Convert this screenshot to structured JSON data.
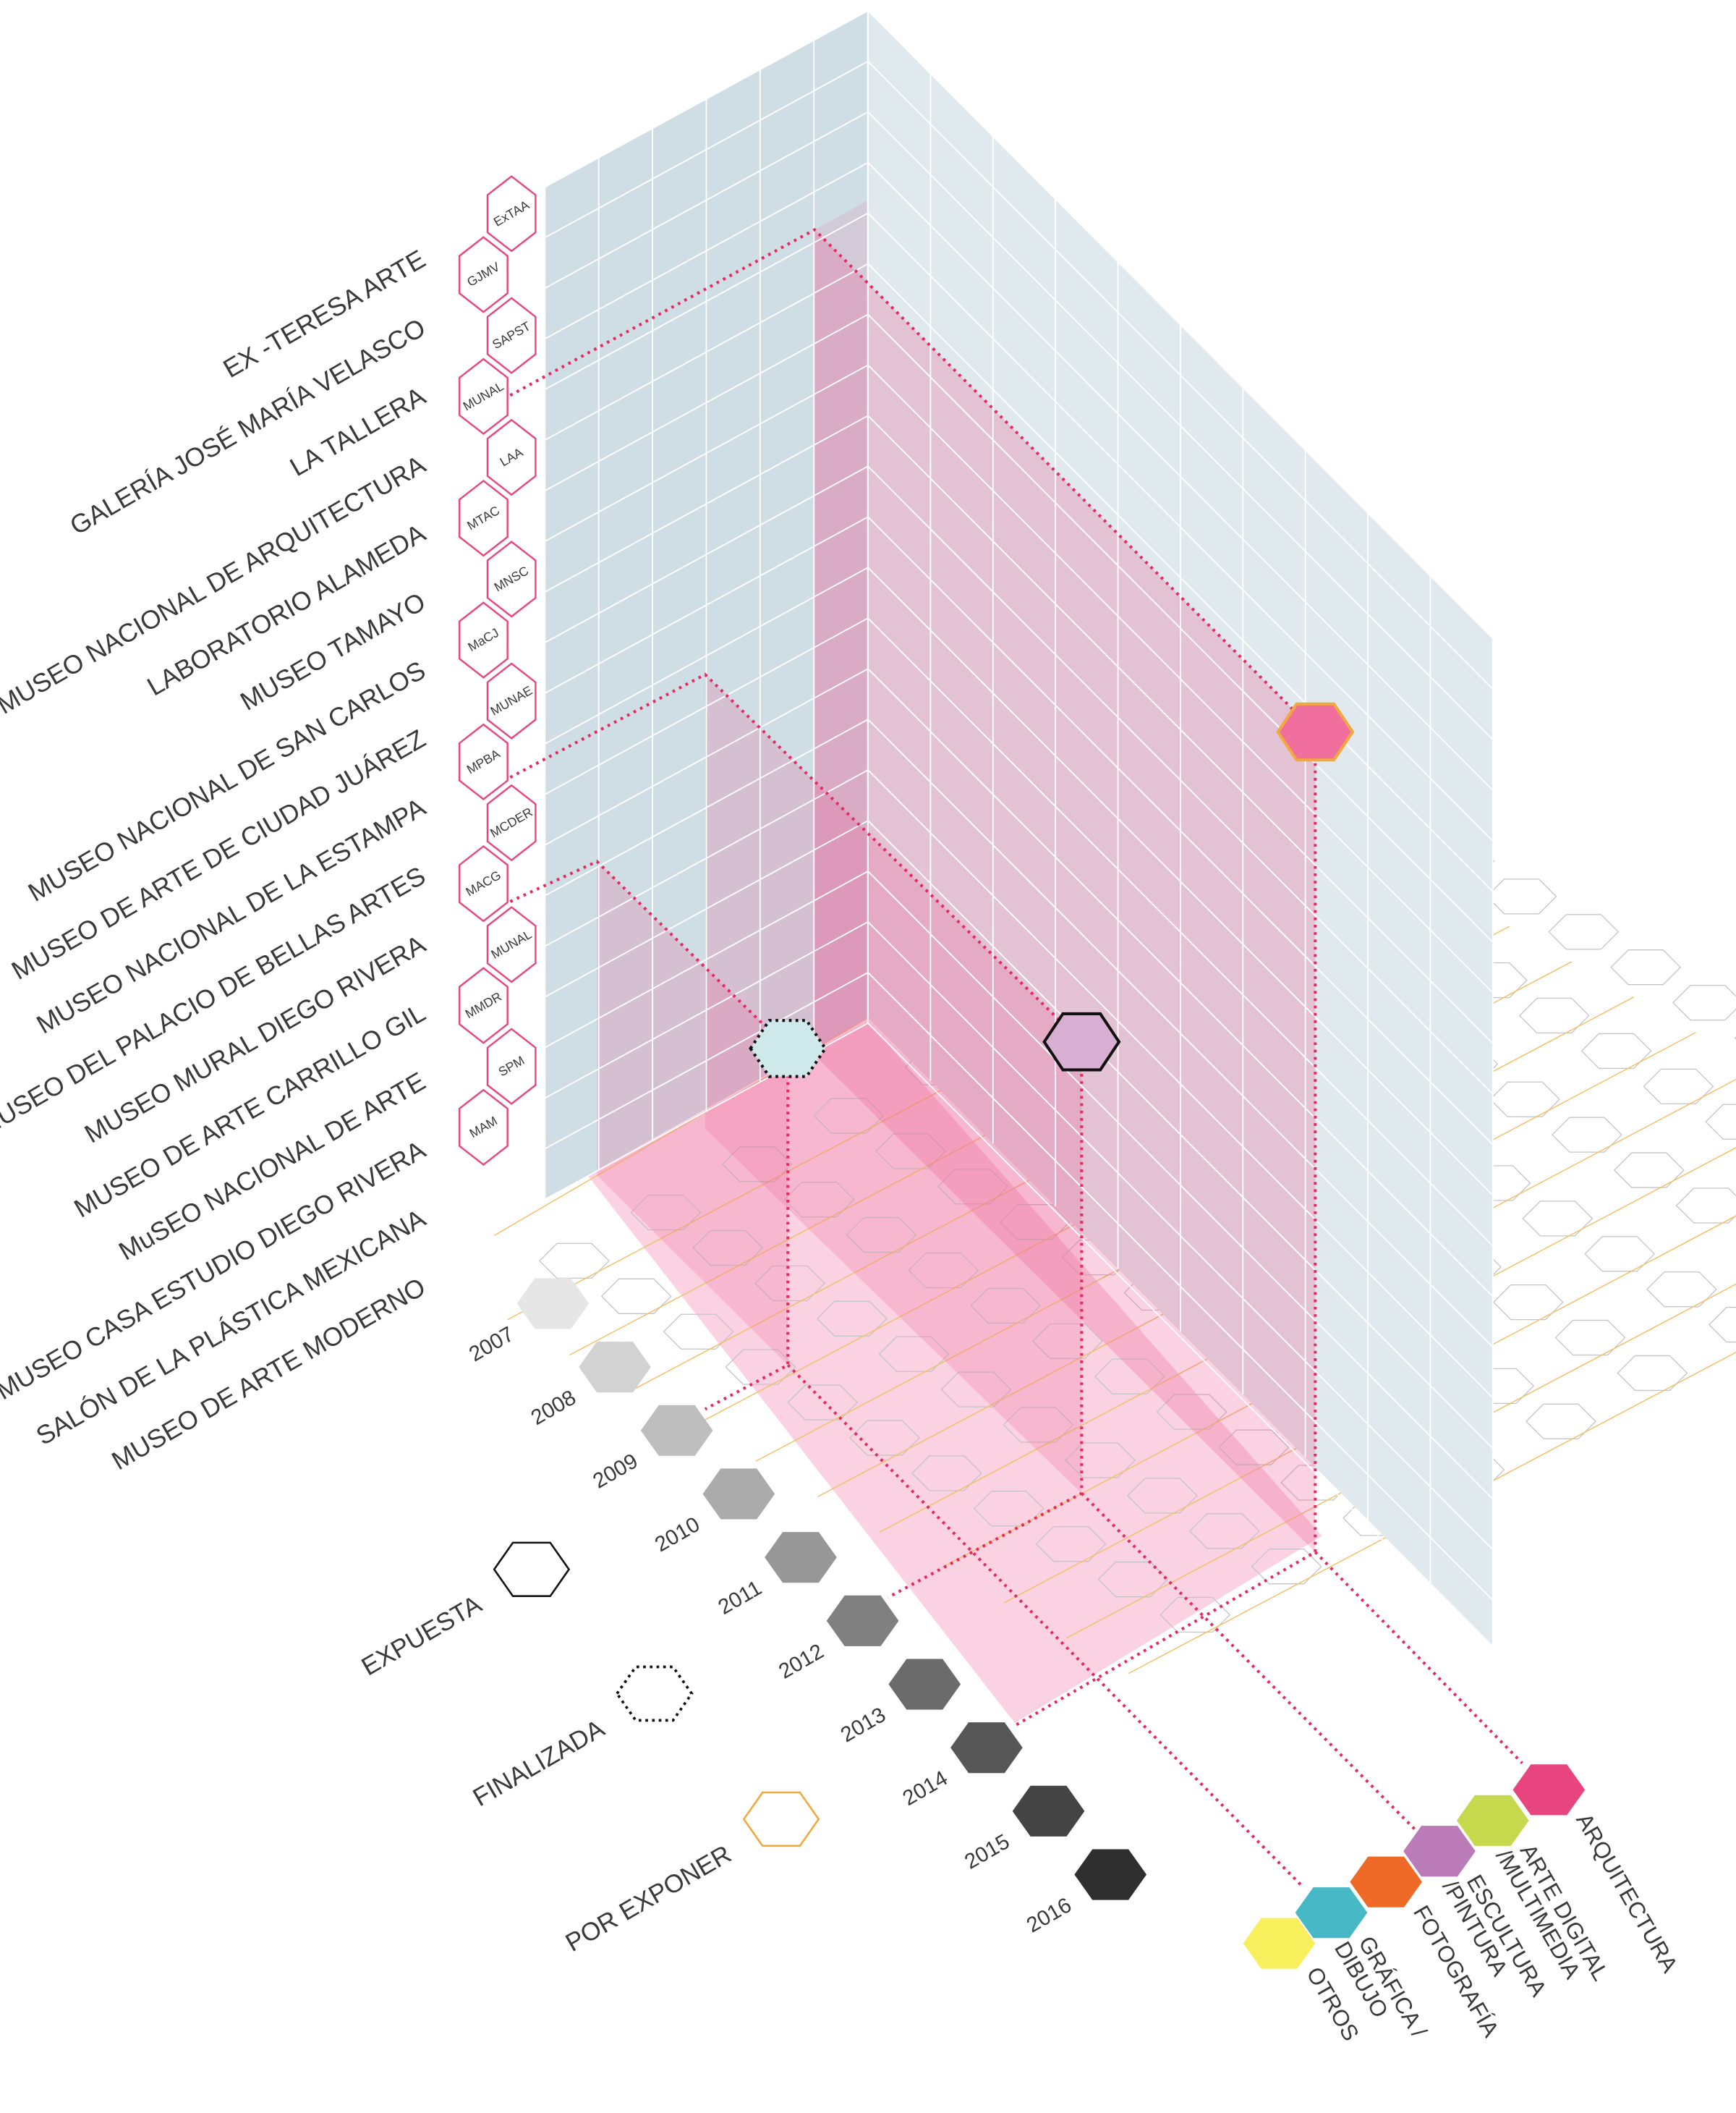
{
  "museums": [
    "EX -TERESA ARTE",
    "GALERÍA JOSÉ MARÍA VELASCO",
    "LA TALLERA",
    "MUSEO NACIONAL DE ARQUITECTURA",
    "LABORATORIO ALAMEDA",
    "MUSEO TAMAYO",
    "MUSEO NACIONAL DE SAN CARLOS",
    "MUSEO DE ARTE DE CIUDAD JUÁREZ",
    "MUSEO NACIONAL DE LA ESTAMPA",
    "MUSEO DEL PALACIO DE BELLAS ARTES",
    "MUSEO MURAL DIEGO RIVERA",
    "MUSEO DE ARTE CARRILLO GIL",
    "MuSEO NACIONAL DE ARTE",
    "MUSEO CASA ESTUDIO DIEGO RIVERA",
    "SALÓN DE LA PLÁSTICA MEXICANA",
    "MUSEO DE ARTE MODERNO"
  ],
  "codes": [
    "ExTAA",
    "GJMV",
    "SAPST",
    "MUNAL",
    "LAA",
    "MTAC",
    "MNSC",
    "MaCJ",
    "MUNAE",
    "MPBA",
    "MCDER",
    "MACG",
    "MUNAL",
    "MMDR",
    "SPM",
    "MAM"
  ],
  "years": [
    {
      "label": "2007",
      "color": "#e6e6e6"
    },
    {
      "label": "2008",
      "color": "#d2d2d2"
    },
    {
      "label": "2009",
      "color": "#bebebe"
    },
    {
      "label": "2010",
      "color": "#ababab"
    },
    {
      "label": "2011",
      "color": "#979797"
    },
    {
      "label": "2012",
      "color": "#808080"
    },
    {
      "label": "2013",
      "color": "#6b6b6b"
    },
    {
      "label": "2014",
      "color": "#575757"
    },
    {
      "label": "2015",
      "color": "#444444"
    },
    {
      "label": "2016",
      "color": "#2f2f2f"
    }
  ],
  "categories": [
    {
      "label": [
        "ARQUITECTURA"
      ],
      "color": "#e8447d"
    },
    {
      "label": [
        "ARTE DIGITAL",
        "/MULTIMEDIA"
      ],
      "color": "#c6d84b"
    },
    {
      "label": [
        "ESCULTURA",
        "/PINTURA"
      ],
      "color": "#bb7ab8"
    },
    {
      "label": [
        "FOTOGRAFÍA"
      ],
      "color": "#f06a27"
    },
    {
      "label": [
        "GRÁFICA /",
        "DIBUJO"
      ],
      "color": "#47b9c6"
    },
    {
      "label": [
        "OTROS"
      ],
      "color": "#f8ef5c"
    }
  ],
  "legend": [
    {
      "label": "EXPUESTA",
      "style": "solid",
      "color": "#111111"
    },
    {
      "label": "FINALIZADA",
      "style": "dotted",
      "color": "#111111"
    },
    {
      "label": "POR EXPONER",
      "style": "solid",
      "color": "#f2a93b"
    }
  ],
  "works": [
    {
      "museum": "MUNAL",
      "year": "2014",
      "category": "ARQUITECTURA",
      "status": "POR EXPONER",
      "fill": "#f06f9c"
    },
    {
      "museum": "MPBA",
      "year": "2012",
      "category": "ESCULTURA /PINTURA",
      "status": "EXPUESTA",
      "fill": "#d8afd2"
    },
    {
      "museum": "MACG",
      "year": "2009",
      "category": "GRÁFICA / DIBUJO",
      "status": "FINALIZADA",
      "fill": "#cfe8ea"
    }
  ],
  "colors": {
    "wall_back": "#cfdde4",
    "wall_side": "#dfe9ee",
    "pink": "#ec5c92",
    "marker": "#e8285f",
    "museum_hex": "#e8447d",
    "grid_floor": "#f2c06a"
  }
}
